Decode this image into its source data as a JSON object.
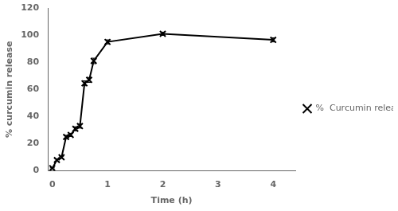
{
  "chart_data": {
    "type": "line",
    "xlabel": "Time (h)",
    "ylabel": "% curcumin release",
    "x": [
      0,
      0.083,
      0.167,
      0.25,
      0.333,
      0.417,
      0.5,
      0.583,
      0.667,
      0.75,
      1.0,
      2.0,
      4.0
    ],
    "series": [
      {
        "name": "%  Curcumin release",
        "color": "black",
        "marker": "x",
        "values": [
          2.0,
          8.0,
          10.0,
          25.0,
          26.5,
          31.0,
          33.0,
          64.5,
          67.0,
          81.0,
          95.0,
          101.0,
          96.5
        ],
        "yerr": [
          0.5,
          0.8,
          0.8,
          1.2,
          1.2,
          1.5,
          1.5,
          1.8,
          1.8,
          2.0,
          1.5,
          1.2,
          1.5
        ]
      }
    ],
    "xlim": [
      -0.08,
      4.4
    ],
    "ylim": [
      0,
      120
    ],
    "xticks": [
      0,
      1,
      2,
      3,
      4
    ],
    "yticks": [
      0,
      20,
      40,
      60,
      80,
      100,
      120
    ],
    "grid": false,
    "legend": "right"
  }
}
